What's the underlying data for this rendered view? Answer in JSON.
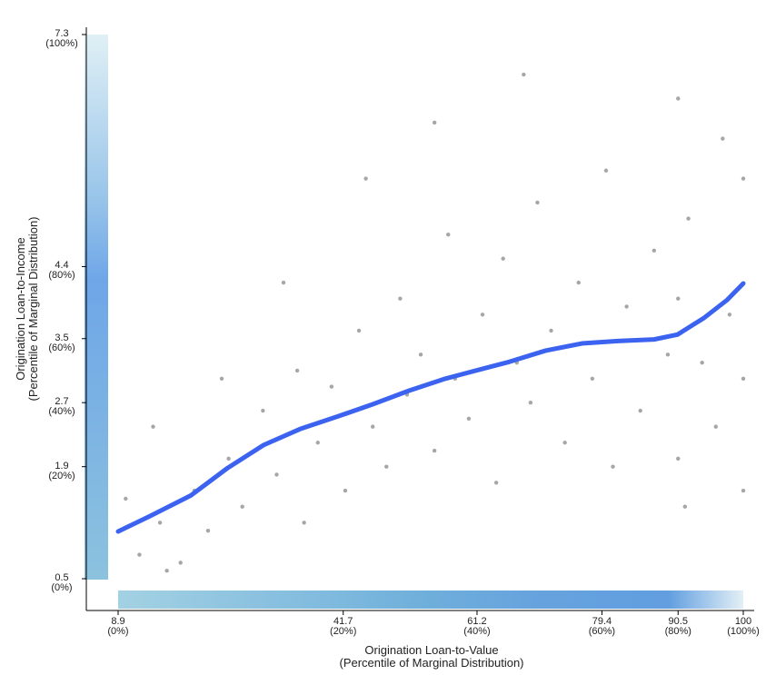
{
  "chart_data": {
    "type": "scatter",
    "x_label": "Origination Loan-to-Value\n(Percentile of Marginal Distribution)",
    "y_label": "Origination Loan-to-Income\n(Percentile of Marginal Distribution)",
    "xlim": [
      8.9,
      100
    ],
    "ylim": [
      0.5,
      7.3
    ],
    "xticks": [
      {
        "value": 8.9,
        "label": "8.9\n(0%)"
      },
      {
        "value": 41.7,
        "label": "41.7\n(20%)"
      },
      {
        "value": 61.2,
        "label": "61.2\n(40%)"
      },
      {
        "value": 79.4,
        "label": "79.4\n(60%)"
      },
      {
        "value": 90.5,
        "label": "90.5\n(80%)"
      },
      {
        "value": 100,
        "label": "100\n(100%)"
      }
    ],
    "yticks": [
      {
        "value": 0.5,
        "label": "0.5\n(0%)"
      },
      {
        "value": 1.9,
        "label": "1.9\n(20%)"
      },
      {
        "value": 2.7,
        "label": "2.7\n(40%)"
      },
      {
        "value": 3.5,
        "label": "3.5\n(60%)"
      },
      {
        "value": 4.4,
        "label": "4.4\n(80%)"
      },
      {
        "value": 7.3,
        "label": "7.3\n(100%)"
      }
    ],
    "points": {
      "color": "#000000",
      "x": [
        12,
        15,
        18,
        20,
        22,
        25,
        27,
        30,
        32,
        35,
        36,
        38,
        40,
        42,
        44,
        46,
        48,
        50,
        51,
        53,
        55,
        57,
        58,
        60,
        62,
        64,
        65,
        67,
        69,
        70,
        72,
        74,
        76,
        78,
        80,
        81,
        83,
        85,
        87,
        89,
        90.5,
        90.5,
        90.5,
        91.5,
        92,
        94,
        96,
        97,
        98,
        100,
        100,
        100,
        10,
        14,
        24,
        33,
        45,
        55,
        68,
        16
      ],
      "y": [
        0.8,
        1.2,
        0.7,
        1.6,
        1.1,
        2.0,
        1.4,
        2.6,
        1.8,
        3.1,
        1.2,
        2.2,
        2.9,
        1.6,
        3.6,
        2.4,
        1.9,
        4.0,
        2.8,
        3.3,
        2.1,
        4.8,
        3.0,
        2.5,
        3.8,
        1.7,
        4.5,
        3.2,
        2.7,
        5.2,
        3.6,
        2.2,
        4.2,
        3.0,
        5.6,
        1.9,
        3.9,
        2.6,
        4.6,
        3.3,
        6.5,
        2.0,
        4.0,
        1.4,
        5.0,
        3.2,
        2.4,
        6.0,
        3.8,
        5.5,
        1.6,
        3.0,
        1.5,
        2.4,
        3.0,
        4.2,
        5.5,
        6.2,
        6.8,
        0.6
      ]
    },
    "trend": {
      "color": "#3b63f0",
      "x": [
        8.9,
        13.5,
        19.5,
        24.8,
        30.1,
        35.4,
        41.0,
        46.0,
        51.3,
        56.6,
        61.9,
        65.9,
        71.2,
        76.5,
        81.7,
        87.0,
        90.4,
        94.3,
        97.6,
        100
      ],
      "y": [
        1.09,
        1.28,
        1.54,
        1.88,
        2.17,
        2.37,
        2.53,
        2.68,
        2.85,
        3.0,
        3.12,
        3.21,
        3.35,
        3.44,
        3.47,
        3.49,
        3.55,
        3.76,
        3.98,
        4.19
      ]
    }
  }
}
